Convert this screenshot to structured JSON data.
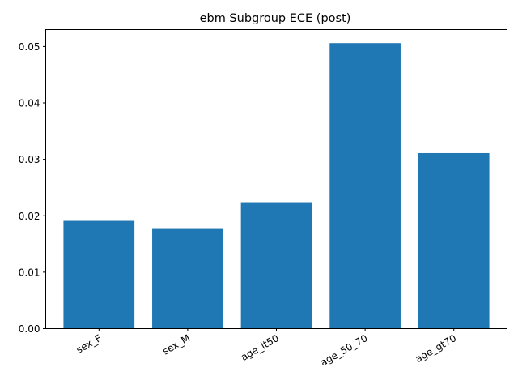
{
  "chart_data": {
    "type": "bar",
    "title": "ebm Subgroup ECE (post)",
    "xlabel": "",
    "ylabel": "",
    "categories": [
      "sex_F",
      "sex_M",
      "age_lt50",
      "age_50_70",
      "age_gt70"
    ],
    "values": [
      0.0191,
      0.0178,
      0.0224,
      0.0506,
      0.0311
    ],
    "ylim": [
      0,
      0.053
    ],
    "yticks": [
      "0.00",
      "0.01",
      "0.02",
      "0.03",
      "0.04",
      "0.05"
    ],
    "bar_color": "#1f77b4",
    "grid": false,
    "legend": "none"
  }
}
